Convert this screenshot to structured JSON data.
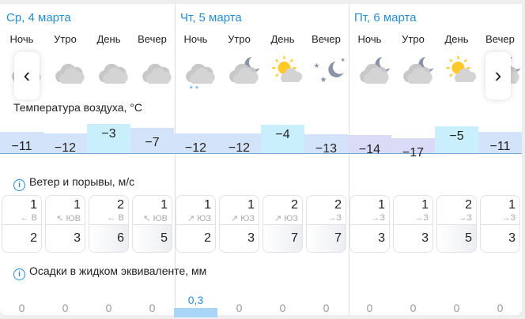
{
  "days": [
    {
      "date": "Ср, 4 марта",
      "parts": [
        {
          "name": "Ночь",
          "icon": "cloudy",
          "temp": -11,
          "wind": 1,
          "dir": "← В",
          "gust": 2,
          "prec": "0"
        },
        {
          "name": "Утро",
          "icon": "cloudy",
          "temp": -12,
          "wind": 1,
          "dir": "↖ ЮВ",
          "gust": 3,
          "prec": "0"
        },
        {
          "name": "День",
          "icon": "cloudy",
          "temp": -3,
          "wind": 2,
          "dir": "← В",
          "gust": 6,
          "prec": "0"
        },
        {
          "name": "Вечер",
          "icon": "cloudy",
          "temp": -7,
          "wind": 1,
          "dir": "↖ ЮВ",
          "gust": 5,
          "prec": "0"
        }
      ]
    },
    {
      "date": "Чт, 5 марта",
      "parts": [
        {
          "name": "Ночь",
          "icon": "cloudy-snow",
          "temp": -12,
          "wind": 1,
          "dir": "↗ ЮЗ",
          "gust": 2,
          "prec": "0,3"
        },
        {
          "name": "Утро",
          "icon": "cloud-moon",
          "temp": -12,
          "wind": 1,
          "dir": "↗ ЮЗ",
          "gust": 3,
          "prec": "0"
        },
        {
          "name": "День",
          "icon": "sun-cloud",
          "temp": -4,
          "wind": 2,
          "dir": "↗ ЮЗ",
          "gust": 7,
          "prec": "0"
        },
        {
          "name": "Вечер",
          "icon": "moon-stars",
          "temp": -13,
          "wind": 2,
          "dir": "→З",
          "gust": 7,
          "prec": "0"
        }
      ]
    },
    {
      "date": "Пт, 6 марта",
      "parts": [
        {
          "name": "Ночь",
          "icon": "cloud-moon",
          "temp": -14,
          "wind": 1,
          "dir": "→З",
          "gust": 3,
          "prec": "0"
        },
        {
          "name": "Утро",
          "icon": "cloud-moon",
          "temp": -17,
          "wind": 1,
          "dir": "→З",
          "gust": 3,
          "prec": "0"
        },
        {
          "name": "День",
          "icon": "sun-cloud",
          "temp": -5,
          "wind": 2,
          "dir": "→З",
          "gust": 5,
          "prec": "0"
        },
        {
          "name": "Вечер",
          "icon": "cloud-moon",
          "temp": -11,
          "wind": 1,
          "dir": "→З",
          "gust": 3,
          "prec": "0"
        }
      ]
    }
  ],
  "labels": {
    "temperature": "Температура воздуха, °C",
    "wind": "Ветер и порывы, м/с",
    "precipitation": "Осадки в жидком эквиваленте, мм",
    "info": "i"
  },
  "nav": {
    "prev": "‹",
    "next": "›"
  },
  "colors": {
    "accent": "#2a8dd0",
    "warm": "#c9eefc",
    "mid": "#d3e3fa",
    "cold": "#d9dbf7"
  }
}
